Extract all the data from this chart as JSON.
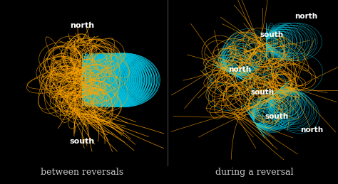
{
  "background_color": "#000000",
  "cyan_color": "#00BFDD",
  "orange_color": "#FFA500",
  "white_color": "#FFFFFF",
  "label1": "between reversals",
  "label2": "during a reversal",
  "north_label": "north",
  "south_label": "south",
  "figsize": [
    4.74,
    2.59
  ],
  "dpi": 100,
  "label_fontsize": 9,
  "pole_fontsize": 8,
  "label_color": "#CCCCCC"
}
